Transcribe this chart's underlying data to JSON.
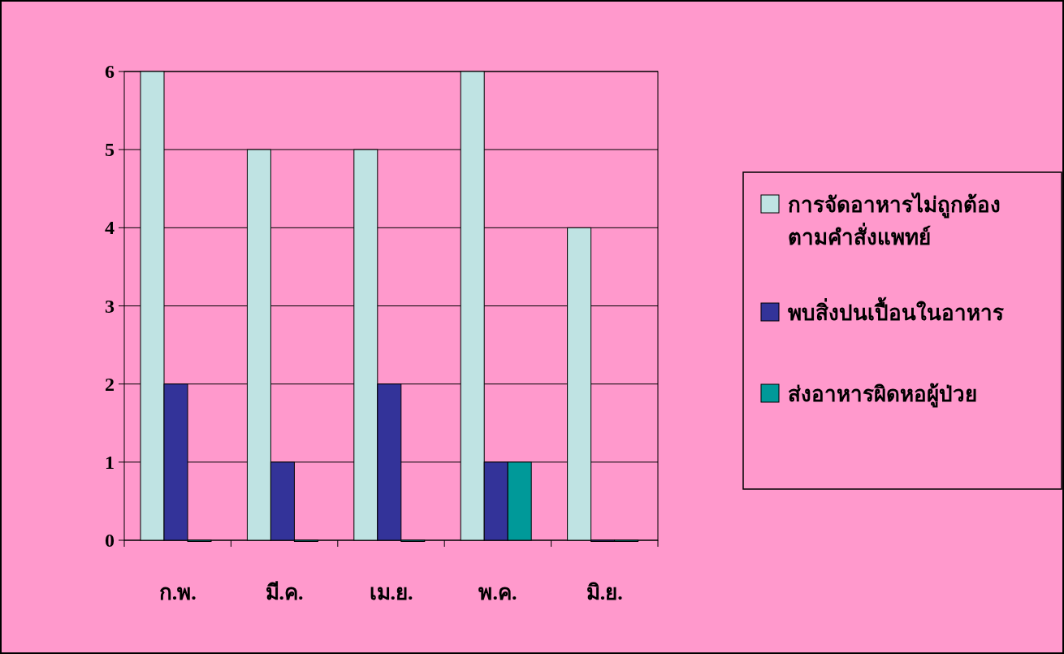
{
  "chart_data": {
    "type": "bar",
    "categories": [
      "ก.พ.",
      "มี.ค.",
      "เม.ย.",
      "พ.ค.",
      "มิ.ย."
    ],
    "series": [
      {
        "name": "การจัดอาหารไม่ถูกต้อง ตามคำสั่งแพทย์",
        "color": "#bfe3e3",
        "values": [
          6,
          5,
          5,
          6,
          4
        ]
      },
      {
        "name": "พบสิ่งปนเปื้อนในอาหาร",
        "color": "#333399",
        "values": [
          2,
          1,
          2,
          1,
          0
        ]
      },
      {
        "name": "ส่งอาหารผิดหอผู้ป่วย",
        "color": "#009999",
        "values": [
          0,
          0,
          0,
          1,
          0
        ]
      }
    ],
    "ylim": [
      0,
      6
    ],
    "yticks": [
      0,
      1,
      2,
      3,
      4,
      5,
      6
    ],
    "grid": "y",
    "legend": "right"
  }
}
